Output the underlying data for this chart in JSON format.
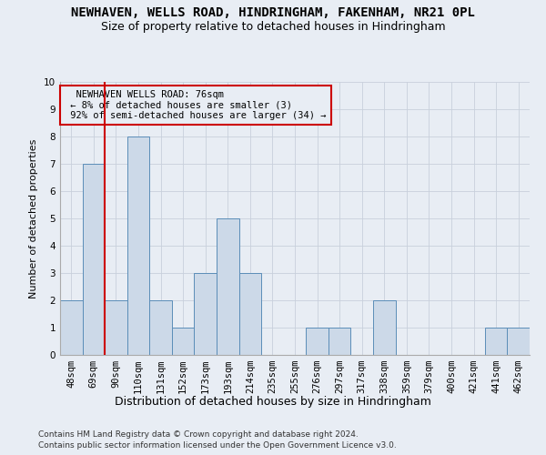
{
  "title": "NEWHAVEN, WELLS ROAD, HINDRINGHAM, FAKENHAM, NR21 0PL",
  "subtitle": "Size of property relative to detached houses in Hindringham",
  "xlabel": "Distribution of detached houses by size in Hindringham",
  "ylabel": "Number of detached properties",
  "footer_line1": "Contains HM Land Registry data © Crown copyright and database right 2024.",
  "footer_line2": "Contains public sector information licensed under the Open Government Licence v3.0.",
  "categories": [
    "48sqm",
    "69sqm",
    "90sqm",
    "110sqm",
    "131sqm",
    "152sqm",
    "173sqm",
    "193sqm",
    "214sqm",
    "235sqm",
    "255sqm",
    "276sqm",
    "297sqm",
    "317sqm",
    "338sqm",
    "359sqm",
    "379sqm",
    "400sqm",
    "421sqm",
    "441sqm",
    "462sqm"
  ],
  "values": [
    2,
    7,
    2,
    8,
    2,
    1,
    3,
    5,
    3,
    0,
    0,
    1,
    1,
    0,
    2,
    0,
    0,
    0,
    0,
    1,
    1
  ],
  "bar_color": "#ccd9e8",
  "bar_edge_color": "#5b8db8",
  "subject_line_color": "#cc0000",
  "subject_line_index": 1,
  "annotation_text": "  NEWHAVEN WELLS ROAD: 76sqm  \n ← 8% of detached houses are smaller (3)\n 92% of semi-detached houses are larger (34) →",
  "annotation_box_edgecolor": "#cc0000",
  "ylim": [
    0,
    10
  ],
  "yticks": [
    0,
    1,
    2,
    3,
    4,
    5,
    6,
    7,
    8,
    9,
    10
  ],
  "grid_color": "#c8d0dc",
  "bg_color": "#e8edf4",
  "title_fontsize": 10,
  "subtitle_fontsize": 9,
  "xlabel_fontsize": 9,
  "ylabel_fontsize": 8,
  "tick_fontsize": 7.5,
  "annotation_fontsize": 7.5,
  "footer_fontsize": 6.5
}
